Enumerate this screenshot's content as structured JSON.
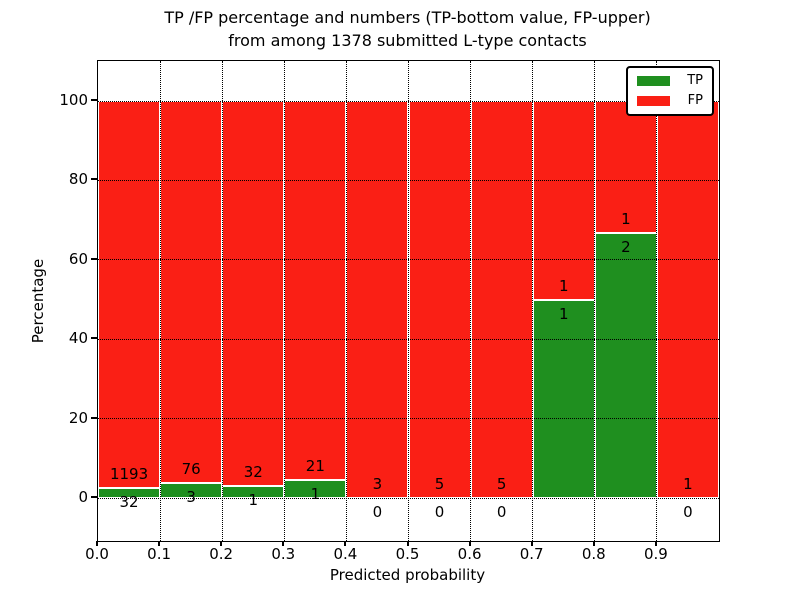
{
  "title": {
    "line1": "TP /FP percentage and numbers (TP-bottom value, FP-upper)",
    "line2": "from among 1378 submitted L-type contacts"
  },
  "axes": {
    "xlabel": "Predicted probability",
    "ylabel": "Percentage",
    "x_tick_labels": [
      "0.0",
      "0.1",
      "0.2",
      "0.3",
      "0.4",
      "0.5",
      "0.6",
      "0.7",
      "0.8",
      "0.9"
    ],
    "y_tick_values": [
      0,
      20,
      40,
      60,
      80,
      100
    ]
  },
  "legend": {
    "entries": [
      {
        "label": "TP",
        "color": "#1f8f1f"
      },
      {
        "label": "FP",
        "color": "#fa1f15"
      }
    ]
  },
  "chart_data": {
    "type": "bar",
    "stacked": true,
    "normalized_to_percent": true,
    "title": "TP /FP percentage and numbers (TP-bottom value, FP-upper) from among 1378 submitted L-type contacts",
    "total_contacts": 1378,
    "xlabel": "Predicted probability",
    "ylabel": "Percentage",
    "ylim": [
      0,
      100
    ],
    "grid": "dotted",
    "legend_position": "upper right",
    "bin_edges": [
      0.0,
      0.1,
      0.2,
      0.3,
      0.4,
      0.5,
      0.6,
      0.7,
      0.8,
      0.9,
      1.0
    ],
    "categories": [
      "0.0-0.1",
      "0.1-0.2",
      "0.2-0.3",
      "0.3-0.4",
      "0.4-0.5",
      "0.5-0.6",
      "0.6-0.7",
      "0.7-0.8",
      "0.8-0.9",
      "0.9-1.0"
    ],
    "series": [
      {
        "name": "TP",
        "color": "#1f8f1f",
        "counts": [
          32,
          3,
          1,
          1,
          0,
          0,
          0,
          1,
          2,
          0
        ]
      },
      {
        "name": "FP",
        "color": "#fa1f15",
        "counts": [
          1193,
          76,
          32,
          21,
          3,
          5,
          5,
          1,
          1,
          1
        ]
      }
    ]
  }
}
